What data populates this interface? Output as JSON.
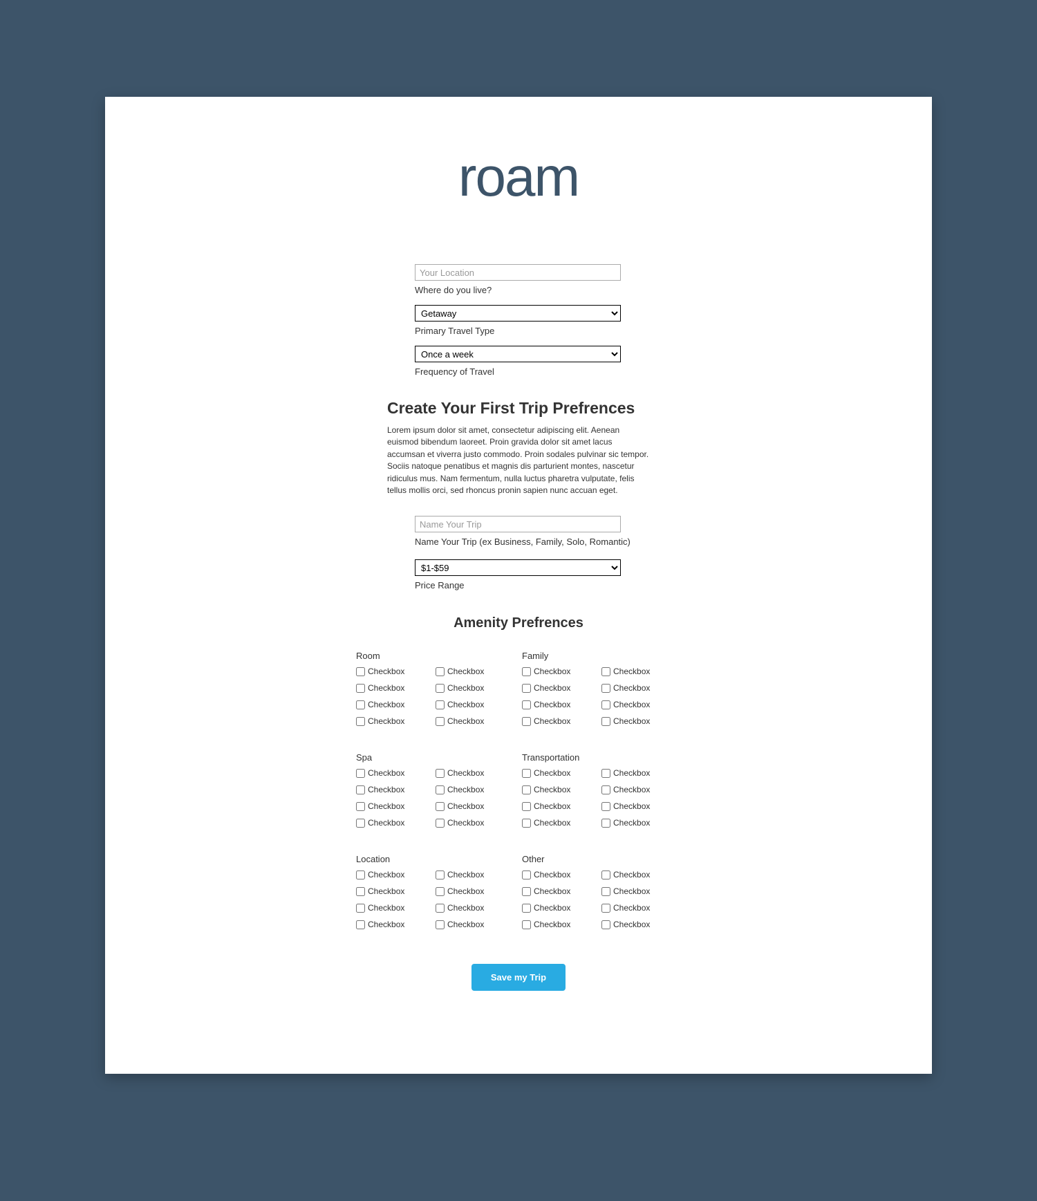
{
  "page": {
    "background_color": "#3d5469",
    "card_background": "#ffffff"
  },
  "logo": {
    "text": "roam",
    "color": "#3d5469"
  },
  "form": {
    "location": {
      "placeholder": "Your Location",
      "label": "Where do you live?"
    },
    "travel_type": {
      "value": "Getaway",
      "label": "Primary Travel Type"
    },
    "frequency": {
      "value": "Once a week",
      "label": "Frequency of Travel"
    }
  },
  "trip_section": {
    "heading": "Create Your First Trip Prefrences",
    "description": "Lorem ipsum dolor sit amet, consectetur adipiscing elit. Aenean euismod bibendum laoreet. Proin gravida dolor sit amet lacus accumsan et viverra justo commodo. Proin sodales pulvinar sic tempor. Sociis natoque penatibus et magnis dis parturient montes, nascetur ridiculus mus. Nam fermentum, nulla luctus pharetra vulputate, felis tellus mollis orci, sed rhoncus pronin sapien nunc accuan eget.",
    "trip_name": {
      "placeholder": "Name Your Trip",
      "label": "Name Your Trip (ex Business, Family, Solo, Romantic)"
    },
    "price_range": {
      "value": "$1-$59",
      "label": "Price Range"
    }
  },
  "amenities": {
    "heading": "Amenity Prefrences",
    "checkbox_label": "Checkbox",
    "groups": [
      {
        "title": "Room",
        "count": 8
      },
      {
        "title": "Family",
        "count": 8
      },
      {
        "title": "Spa",
        "count": 8
      },
      {
        "title": "Transportation",
        "count": 8
      },
      {
        "title": "Location",
        "count": 8
      },
      {
        "title": "Other",
        "count": 8
      }
    ]
  },
  "save_button": {
    "label": "Save my Trip",
    "background_color": "#29abe2",
    "text_color": "#ffffff"
  }
}
